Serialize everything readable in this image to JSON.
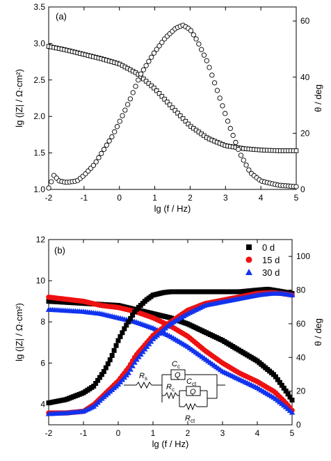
{
  "chart_data": [
    {
      "type": "scatter",
      "panel_label": "(a)",
      "xlabel": "lg (f / Hz)",
      "ylabel_left": "lg (|Z| / Ω·cm²)",
      "ylabel_right": "θ / deg",
      "xlim": [
        -2,
        5
      ],
      "ylim_left": [
        1.0,
        3.5
      ],
      "ylim_right": [
        0,
        65
      ],
      "x_ticks": [
        "-2",
        "-1",
        "0",
        "1",
        "2",
        "3",
        "4",
        "5"
      ],
      "y_left_ticks": [
        "1.0",
        "1.5",
        "2.0",
        "2.5",
        "3.0",
        "3.5"
      ],
      "y_right_ticks": [
        "0",
        "20",
        "40",
        "60"
      ],
      "series": [
        {
          "quantity": "modulus",
          "axis": "left",
          "marker": "square-open",
          "color": "#000000",
          "points": [
            [
              -2.0,
              2.96
            ],
            [
              -1.5,
              2.91
            ],
            [
              -1.0,
              2.85
            ],
            [
              -0.5,
              2.79
            ],
            [
              0.0,
              2.72
            ],
            [
              0.5,
              2.59
            ],
            [
              1.0,
              2.38
            ],
            [
              1.5,
              2.12
            ],
            [
              2.0,
              1.87
            ],
            [
              2.5,
              1.7
            ],
            [
              3.0,
              1.6
            ],
            [
              3.5,
              1.56
            ],
            [
              4.0,
              1.54
            ],
            [
              4.5,
              1.53
            ],
            [
              5.0,
              1.53
            ]
          ]
        },
        {
          "quantity": "phase",
          "axis": "right",
          "marker": "circle-open",
          "color": "#000000",
          "points": [
            [
              -2.0,
              0.5
            ],
            [
              -1.85,
              5.0
            ],
            [
              -1.7,
              3.0
            ],
            [
              -1.5,
              2.5
            ],
            [
              -1.2,
              3.0
            ],
            [
              -1.0,
              5.0
            ],
            [
              -0.7,
              9.0
            ],
            [
              -0.5,
              13.0
            ],
            [
              -0.2,
              19.0
            ],
            [
              0.0,
              24.0
            ],
            [
              0.3,
              32.0
            ],
            [
              0.6,
              41.0
            ],
            [
              1.0,
              49.0
            ],
            [
              1.3,
              54.0
            ],
            [
              1.6,
              57.5
            ],
            [
              1.8,
              58.5
            ],
            [
              2.0,
              57.0
            ],
            [
              2.2,
              53.0
            ],
            [
              2.5,
              45.0
            ],
            [
              2.8,
              34.0
            ],
            [
              3.1,
              23.0
            ],
            [
              3.4,
              13.0
            ],
            [
              3.7,
              6.0
            ],
            [
              4.0,
              3.0
            ],
            [
              4.5,
              1.5
            ],
            [
              5.0,
              1.0
            ]
          ]
        }
      ]
    },
    {
      "type": "scatter",
      "panel_label": "(b)",
      "xlabel": "lg (f / Hz)",
      "ylabel_left": "lg (|Z| / Ω·cm²)",
      "ylabel_right": "θ / deg",
      "xlim": [
        -2,
        5
      ],
      "ylim_left": [
        3,
        12
      ],
      "ylim_right": [
        0,
        110
      ],
      "x_ticks": [
        "-2",
        "-1",
        "0",
        "1",
        "2",
        "3",
        "4",
        "5"
      ],
      "y_left_ticks": [
        "4",
        "6",
        "8",
        "10",
        "12"
      ],
      "y_right_ticks": [
        "0",
        "20",
        "40",
        "60",
        "80",
        "100"
      ],
      "legend": {
        "position": "top-right",
        "entries": [
          {
            "label": "0 d",
            "marker": "square",
            "color": "#000000"
          },
          {
            "label": "15 d",
            "marker": "circle",
            "color": "#ee1111"
          },
          {
            "label": "30 d",
            "marker": "triangle",
            "color": "#1133ee"
          }
        ]
      },
      "series": [
        {
          "name": "0 d",
          "quantity": "modulus",
          "axis": "left",
          "marker": "square",
          "color": "#000000",
          "points": [
            [
              -2.0,
              9.0
            ],
            [
              -1.0,
              8.9
            ],
            [
              0.0,
              8.8
            ],
            [
              0.5,
              8.6
            ],
            [
              1.0,
              8.4
            ],
            [
              1.5,
              8.2
            ],
            [
              2.0,
              7.9
            ],
            [
              2.5,
              7.5
            ],
            [
              3.0,
              7.1
            ],
            [
              3.5,
              6.6
            ],
            [
              4.0,
              6.1
            ],
            [
              4.5,
              5.4
            ],
            [
              4.8,
              4.7
            ],
            [
              5.0,
              4.2
            ]
          ]
        },
        {
          "name": "15 d",
          "quantity": "modulus",
          "axis": "left",
          "marker": "circle",
          "color": "#ee1111",
          "points": [
            [
              -2.0,
              9.2
            ],
            [
              -1.0,
              9.0
            ],
            [
              -0.5,
              8.8
            ],
            [
              0.0,
              8.7
            ],
            [
              0.5,
              8.5
            ],
            [
              1.0,
              8.2
            ],
            [
              1.5,
              7.8
            ],
            [
              2.0,
              7.3
            ],
            [
              2.5,
              6.6
            ],
            [
              3.0,
              6.0
            ],
            [
              3.5,
              5.5
            ],
            [
              4.0,
              5.1
            ],
            [
              4.5,
              4.6
            ],
            [
              4.8,
              4.1
            ],
            [
              5.0,
              3.7
            ]
          ]
        },
        {
          "name": "30 d",
          "quantity": "modulus",
          "axis": "left",
          "marker": "triangle",
          "color": "#1133ee",
          "points": [
            [
              -2.0,
              8.6
            ],
            [
              -1.0,
              8.5
            ],
            [
              -0.5,
              8.4
            ],
            [
              0.0,
              8.2
            ],
            [
              0.5,
              8.0
            ],
            [
              1.0,
              7.7
            ],
            [
              1.5,
              7.3
            ],
            [
              2.0,
              6.8
            ],
            [
              2.5,
              6.2
            ],
            [
              3.0,
              5.6
            ],
            [
              3.5,
              5.2
            ],
            [
              4.0,
              4.8
            ],
            [
              4.5,
              4.3
            ],
            [
              4.8,
              3.9
            ],
            [
              5.0,
              3.6
            ]
          ]
        },
        {
          "name": "0 d",
          "quantity": "phase",
          "axis": "right",
          "marker": "square",
          "color": "#000000",
          "points": [
            [
              -2.0,
              13.0
            ],
            [
              -1.5,
              15.0
            ],
            [
              -1.0,
              19.0
            ],
            [
              -0.7,
              23.0
            ],
            [
              -0.4,
              32.0
            ],
            [
              -0.2,
              40.0
            ],
            [
              0.0,
              50.0
            ],
            [
              0.2,
              58.0
            ],
            [
              0.5,
              68.0
            ],
            [
              0.8,
              74.0
            ],
            [
              1.0,
              77.0
            ],
            [
              1.3,
              78.5
            ],
            [
              1.5,
              79.0
            ],
            [
              2.0,
              79.0
            ],
            [
              2.5,
              79.0
            ],
            [
              3.0,
              79.0
            ],
            [
              3.5,
              79.0
            ],
            [
              4.0,
              80.0
            ],
            [
              4.3,
              80.5
            ],
            [
              4.6,
              79.5
            ],
            [
              5.0,
              78.0
            ]
          ]
        },
        {
          "name": "15 d",
          "quantity": "phase",
          "axis": "right",
          "marker": "circle",
          "color": "#ee1111",
          "points": [
            [
              -2.0,
              7.0
            ],
            [
              -1.5,
              7.0
            ],
            [
              -1.0,
              8.0
            ],
            [
              -0.7,
              12.0
            ],
            [
              -0.5,
              16.0
            ],
            [
              0.0,
              26.0
            ],
            [
              0.3,
              34.0
            ],
            [
              0.5,
              41.0
            ],
            [
              1.0,
              53.0
            ],
            [
              1.5,
              61.0
            ],
            [
              2.0,
              68.0
            ],
            [
              2.5,
              72.0
            ],
            [
              3.0,
              74.0
            ],
            [
              3.5,
              76.0
            ],
            [
              4.0,
              78.0
            ],
            [
              4.4,
              78.5
            ],
            [
              4.7,
              78.0
            ],
            [
              5.0,
              77.0
            ]
          ]
        },
        {
          "name": "30 d",
          "quantity": "phase",
          "axis": "right",
          "marker": "triangle",
          "color": "#1133ee",
          "points": [
            [
              -2.0,
              6.5
            ],
            [
              -1.5,
              7.0
            ],
            [
              -1.0,
              8.0
            ],
            [
              -0.7,
              11.0
            ],
            [
              -0.5,
              15.0
            ],
            [
              0.0,
              24.0
            ],
            [
              0.3,
              31.0
            ],
            [
              0.5,
              38.0
            ],
            [
              1.0,
              51.0
            ],
            [
              1.5,
              60.0
            ],
            [
              2.0,
              66.0
            ],
            [
              2.5,
              71.0
            ],
            [
              3.0,
              73.0
            ],
            [
              3.5,
              75.0
            ],
            [
              4.0,
              77.0
            ],
            [
              4.4,
              78.0
            ],
            [
              4.7,
              78.0
            ],
            [
              5.0,
              77.0
            ]
          ]
        }
      ],
      "circuit_labels": {
        "rs": "R",
        "rs_sub": "s",
        "cc": "C",
        "cc_sub": "c",
        "qc": "Q",
        "rc": "R",
        "rc_sub": "c",
        "cct": "C",
        "cct_sub": "ct",
        "qct": "Q",
        "rct": "R",
        "rct_sub": "ct"
      }
    }
  ]
}
